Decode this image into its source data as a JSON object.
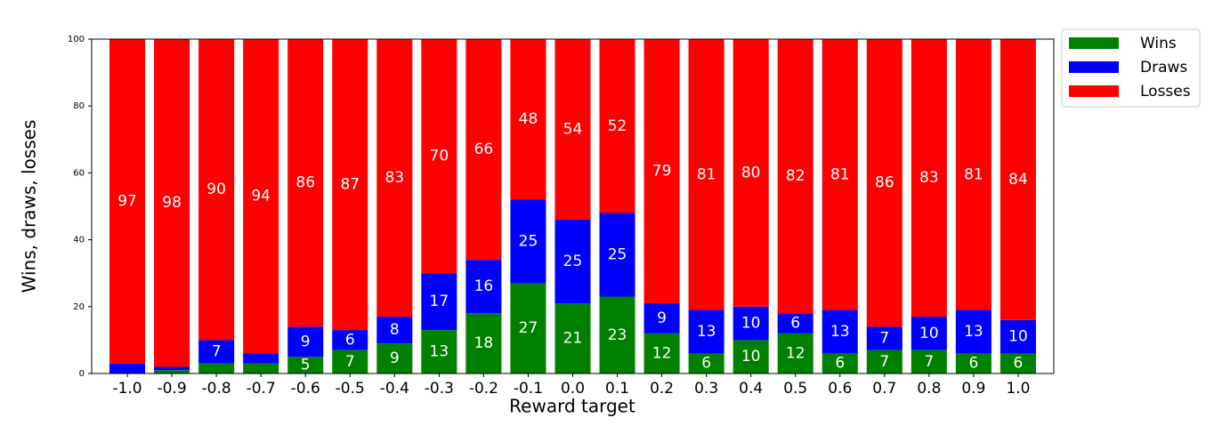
{
  "chart_data": {
    "type": "stacked_bar",
    "x_label": "Reward target",
    "y_label": "Wins, draws, losses",
    "categories": [
      "-1.0",
      "-0.9",
      "-0.8",
      "-0.7",
      "-0.6",
      "-0.5",
      "-0.4",
      "-0.3",
      "-0.2",
      "-0.1",
      "0.0",
      "0.1",
      "0.2",
      "0.3",
      "0.4",
      "0.5",
      "0.6",
      "0.7",
      "0.8",
      "0.9",
      "1.0"
    ],
    "series": [
      {
        "name": "Wins",
        "color": "#008000",
        "values": [
          0,
          1,
          3,
          3,
          5,
          7,
          9,
          13,
          18,
          27,
          21,
          23,
          12,
          6,
          10,
          12,
          6,
          7,
          7,
          6,
          6
        ]
      },
      {
        "name": "Draws",
        "color": "#0000ff",
        "values": [
          3,
          1,
          7,
          3,
          9,
          6,
          8,
          17,
          16,
          25,
          25,
          25,
          9,
          13,
          10,
          6,
          13,
          7,
          10,
          13,
          10
        ]
      },
      {
        "name": "Losses",
        "color": "#ff0000",
        "values": [
          97,
          98,
          90,
          94,
          86,
          87,
          83,
          70,
          66,
          48,
          54,
          52,
          79,
          81,
          80,
          82,
          81,
          86,
          83,
          81,
          84
        ]
      }
    ],
    "ylim": [
      0,
      100
    ],
    "yticks": [
      0,
      20,
      40,
      60,
      80,
      100
    ],
    "legend": "outside-upper-right"
  }
}
